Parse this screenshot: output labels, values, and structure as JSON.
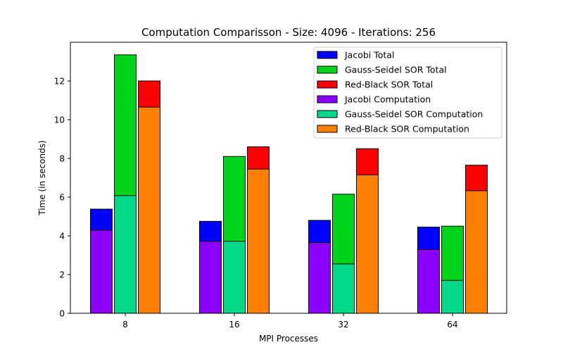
{
  "chart_data": {
    "type": "bar",
    "title": "Computation Comparisson - Size: 4096 - Iterations: 256",
    "xlabel": "MPI Processes",
    "ylabel": "Time (in seconds)",
    "categories": [
      "8",
      "16",
      "32",
      "64"
    ],
    "ylim": [
      0,
      14
    ],
    "yticks": [
      0,
      2,
      4,
      6,
      8,
      10,
      12
    ],
    "grid": false,
    "legend_position": "top-right",
    "series": [
      {
        "name": "Jacobi Total",
        "group": 0,
        "layer": "total",
        "color": "#0000ff",
        "values": [
          5.38,
          4.75,
          4.8,
          4.45
        ]
      },
      {
        "name": "Gauss-Seidel SOR Total",
        "group": 1,
        "layer": "total",
        "color": "#00d41a",
        "values": [
          13.35,
          8.1,
          6.15,
          4.5
        ]
      },
      {
        "name": "Red-Black SOR Total",
        "group": 2,
        "layer": "total",
        "color": "#ff0000",
        "values": [
          12.0,
          8.6,
          8.5,
          7.65
        ]
      },
      {
        "name": "Jacobi Computation",
        "group": 0,
        "layer": "computation",
        "color": "#8b00ff",
        "values": [
          4.3,
          3.72,
          3.65,
          3.3
        ]
      },
      {
        "name": "Gauss-Seidel SOR Computation",
        "group": 1,
        "layer": "computation",
        "color": "#00d98a",
        "values": [
          6.08,
          3.72,
          2.55,
          1.7
        ]
      },
      {
        "name": "Red-Black SOR Computation",
        "group": 2,
        "layer": "computation",
        "color": "#ff7f00",
        "values": [
          10.65,
          7.45,
          7.15,
          6.33
        ]
      }
    ]
  }
}
